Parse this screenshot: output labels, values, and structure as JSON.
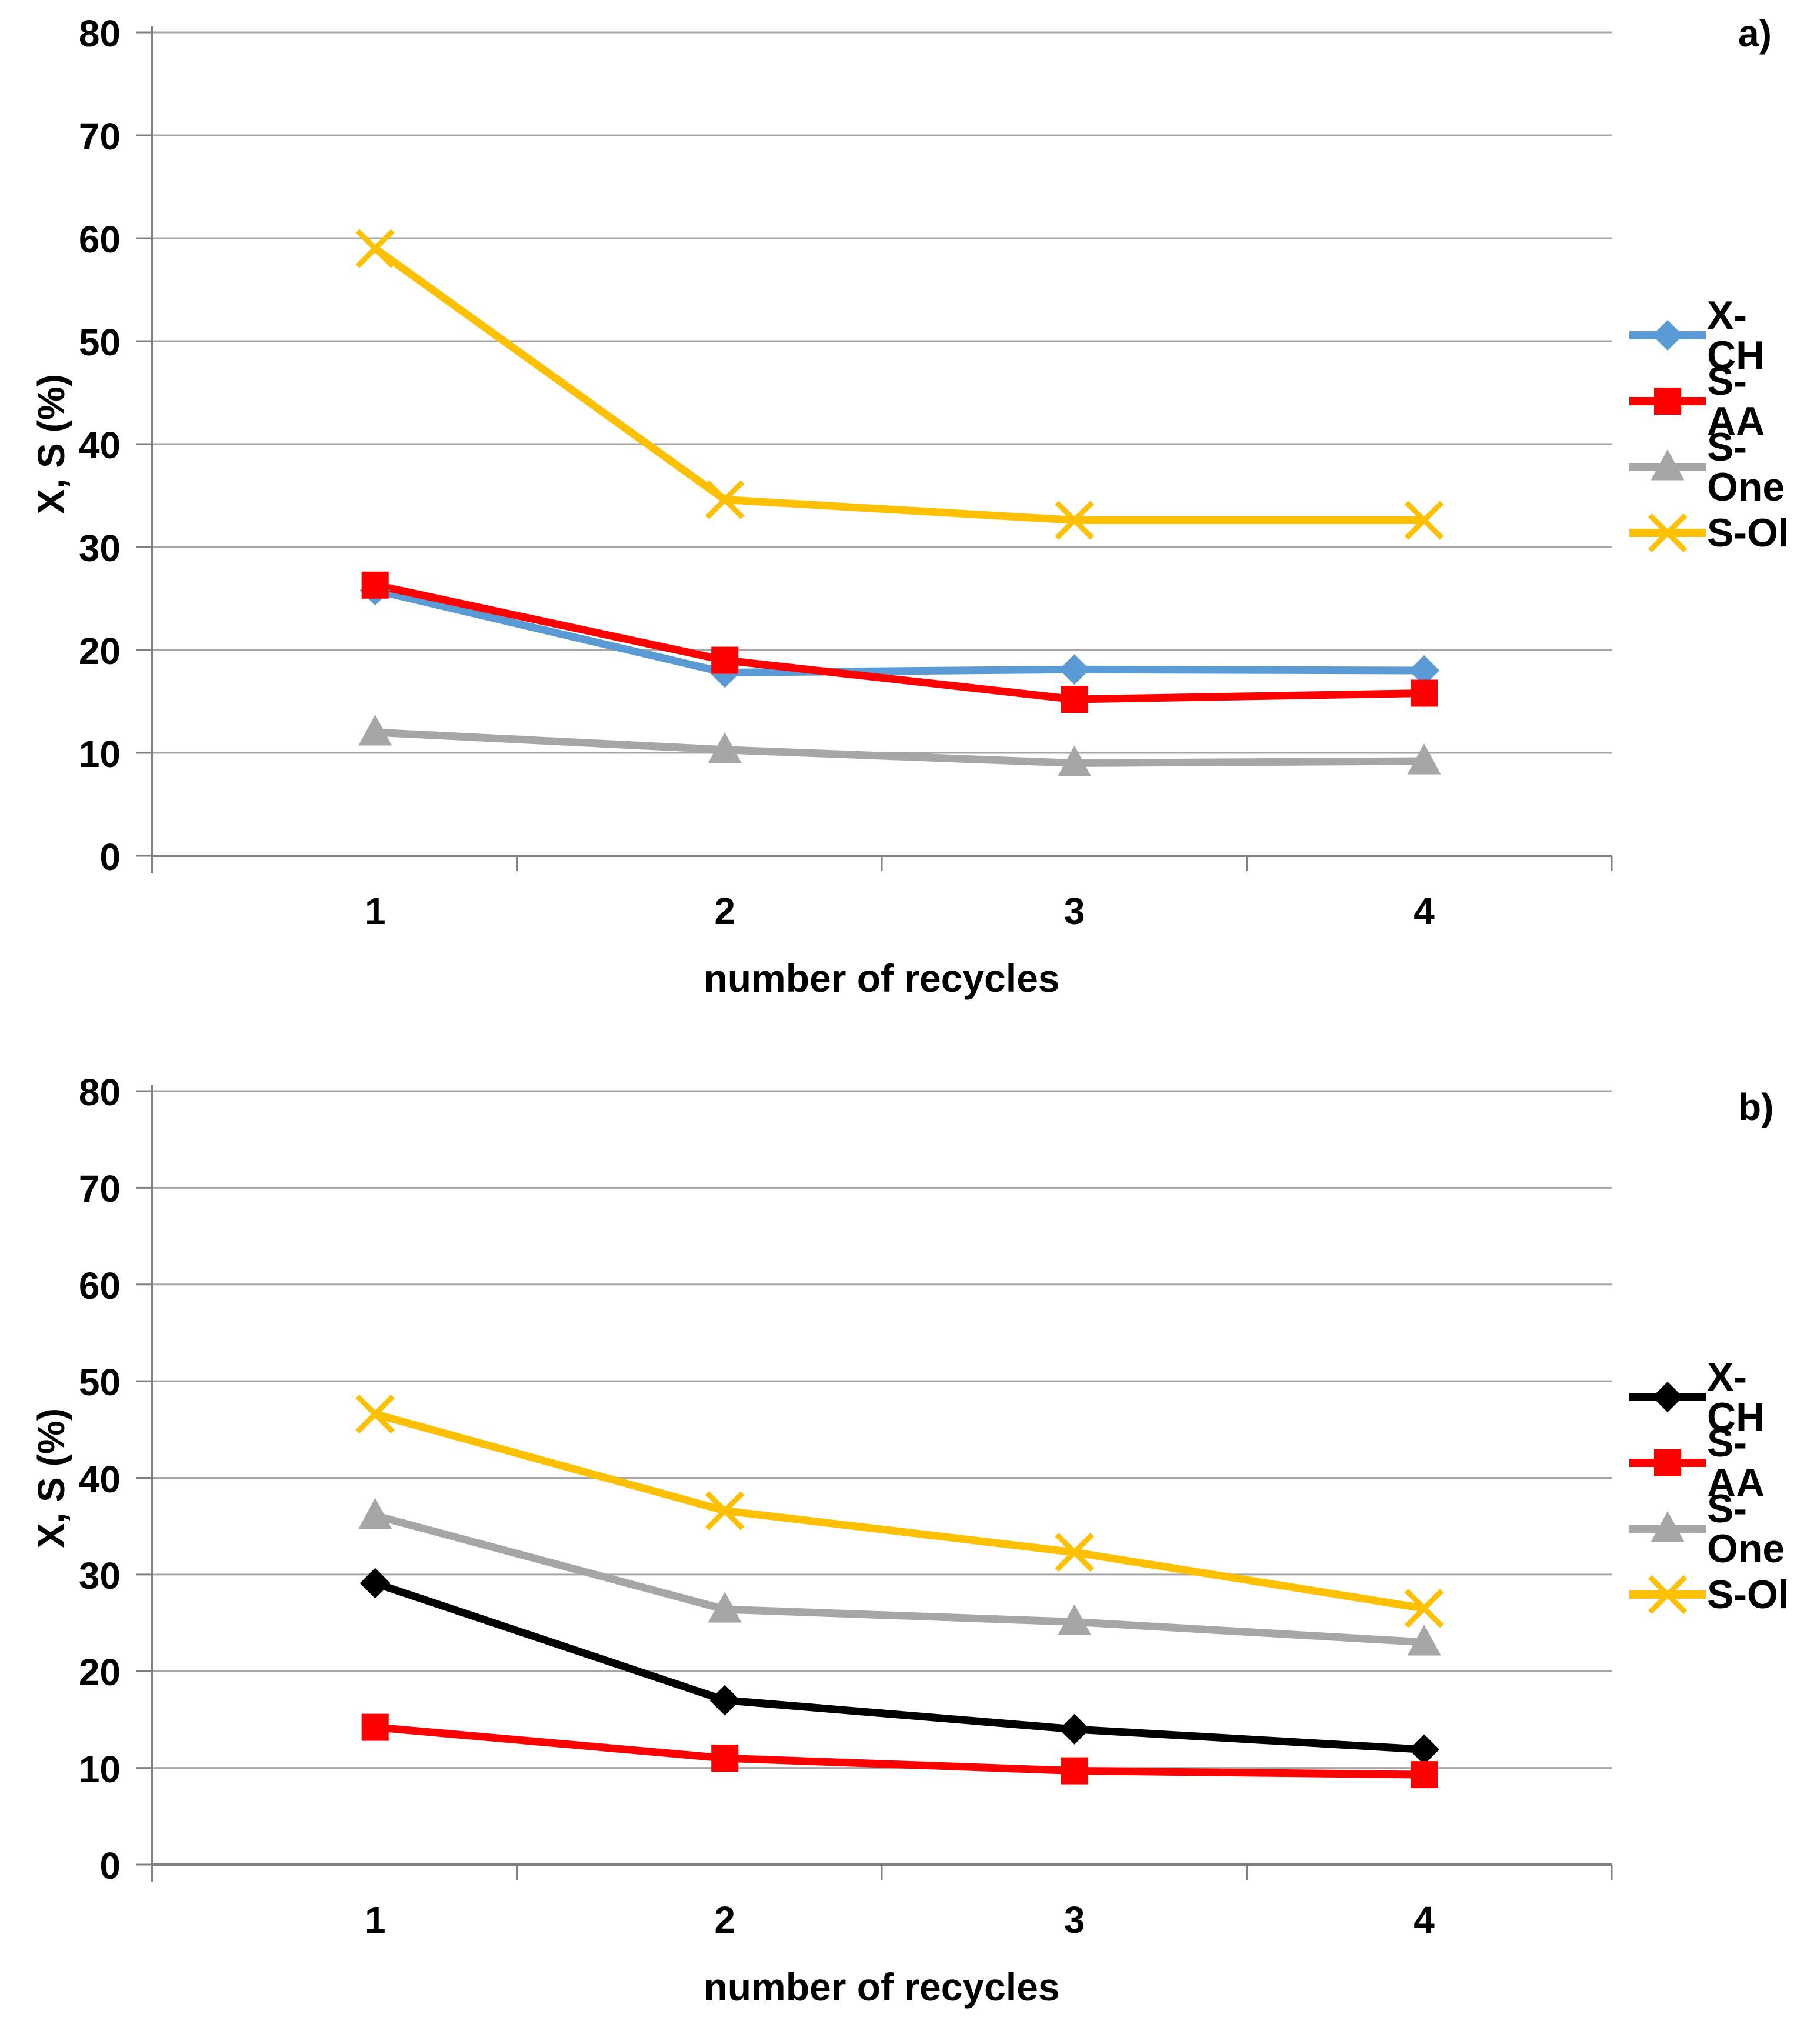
{
  "figure": {
    "ylabel": "X, S (%)",
    "xlabel": "number of recycles",
    "grid_color": "#A6A6A6",
    "axis_color": "#808080"
  },
  "chart_data": [
    {
      "type": "line",
      "id": "a",
      "panel_label": "a)",
      "title": "",
      "xlabel": "number of recycles",
      "ylabel": "X, S (%)",
      "ylim": [
        0,
        80
      ],
      "ystep": 10,
      "grid": true,
      "legend_position": "right",
      "categories": [
        1,
        2,
        3,
        4
      ],
      "series": [
        {
          "name": "X-CH",
          "color": "#5B9BD5",
          "marker": "diamond",
          "values": [
            25.8,
            17.8,
            18.1,
            18.0
          ]
        },
        {
          "name": "S-AA",
          "color": "#FF0000",
          "marker": "square",
          "values": [
            26.3,
            19.0,
            15.2,
            15.8
          ]
        },
        {
          "name": "S-One",
          "color": "#A6A6A6",
          "marker": "triangle",
          "values": [
            12.0,
            10.3,
            9.0,
            9.2
          ]
        },
        {
          "name": "S-Ol",
          "color": "#FFC000",
          "marker": "x",
          "values": [
            59.0,
            34.6,
            32.6,
            32.6
          ]
        }
      ]
    },
    {
      "type": "line",
      "id": "b",
      "panel_label": "b)",
      "title": "",
      "xlabel": "number of recycles",
      "ylabel": "X, S (%)",
      "ylim": [
        0,
        80
      ],
      "ystep": 10,
      "grid": true,
      "legend_position": "right",
      "categories": [
        1,
        2,
        3,
        4
      ],
      "series": [
        {
          "name": "X-CH",
          "color": "#000000",
          "marker": "diamond",
          "values": [
            29.1,
            17.0,
            14.0,
            11.9
          ]
        },
        {
          "name": "S-AA",
          "color": "#FF0000",
          "marker": "square",
          "values": [
            14.2,
            11.0,
            9.7,
            9.3
          ]
        },
        {
          "name": "S-One",
          "color": "#A6A6A6",
          "marker": "triangle",
          "values": [
            36.1,
            26.4,
            25.1,
            23.0
          ]
        },
        {
          "name": "S-Ol",
          "color": "#FFC000",
          "marker": "x",
          "values": [
            46.6,
            36.6,
            32.3,
            26.5
          ]
        }
      ]
    }
  ]
}
